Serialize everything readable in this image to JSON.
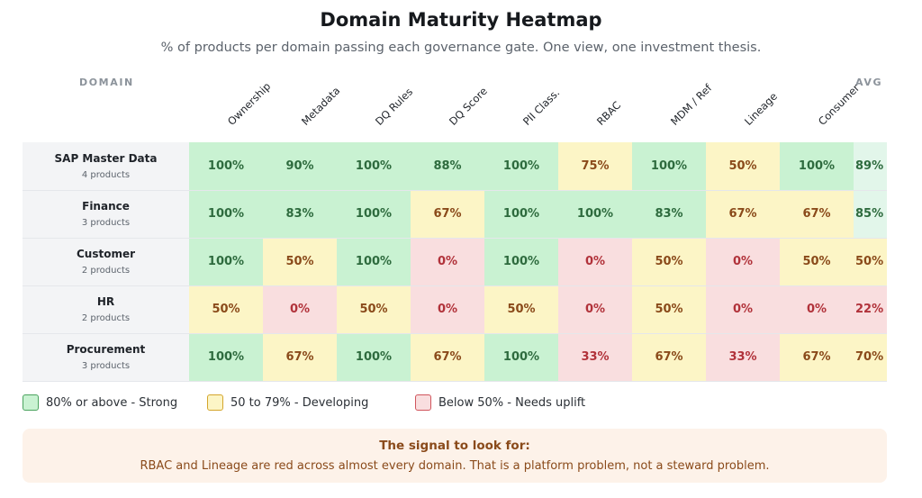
{
  "title": "Domain Maturity Heatmap",
  "subtitle": "% of products per domain passing each governance gate. One view, one investment thesis.",
  "headers": {
    "domain": "DOMAIN",
    "avg": "AVG"
  },
  "legend": [
    {
      "label": "80% or above - Strong",
      "color": "#c9f2d2"
    },
    {
      "label": "50 to 79% - Developing",
      "color": "#fcf5c6"
    },
    {
      "label": "Below 50% - Needs uplift",
      "color": "#f9dedf"
    }
  ],
  "callout": {
    "title": "The signal to look for:",
    "text": "RBAC and Lineage are red across almost every domain. That is a platform problem, not a steward problem."
  },
  "colors": {
    "strong": "#c9f2d2",
    "developing": "#fcf5c6",
    "needs_uplift": "#f9dedf",
    "strong_text": "#2e6b3e",
    "developing_text": "#8a4a1a",
    "needs_uplift_text": "#b1323a"
  },
  "chart_data": {
    "type": "heatmap",
    "title": "Domain Maturity Heatmap",
    "unit": "%",
    "columns": [
      "Ownership",
      "Metadata",
      "DQ Rules",
      "DQ Score",
      "PII Class.",
      "RBAC",
      "MDM / Ref",
      "Lineage",
      "Consumer"
    ],
    "rows": [
      {
        "name": "SAP Master Data",
        "sub": "4 products",
        "values": [
          100,
          90,
          100,
          88,
          100,
          75,
          100,
          50,
          100
        ],
        "avg": 89
      },
      {
        "name": "Finance",
        "sub": "3 products",
        "values": [
          100,
          83,
          100,
          67,
          100,
          100,
          83,
          67,
          67
        ],
        "avg": 85
      },
      {
        "name": "Customer",
        "sub": "2 products",
        "values": [
          100,
          50,
          100,
          0,
          100,
          0,
          50,
          0,
          50
        ],
        "avg": 50
      },
      {
        "name": "HR",
        "sub": "2 products",
        "values": [
          50,
          0,
          50,
          0,
          50,
          0,
          50,
          0,
          0
        ],
        "avg": 22
      },
      {
        "name": "Procurement",
        "sub": "3 products",
        "values": [
          100,
          67,
          100,
          67,
          100,
          33,
          67,
          33,
          67
        ],
        "avg": 70
      }
    ]
  }
}
